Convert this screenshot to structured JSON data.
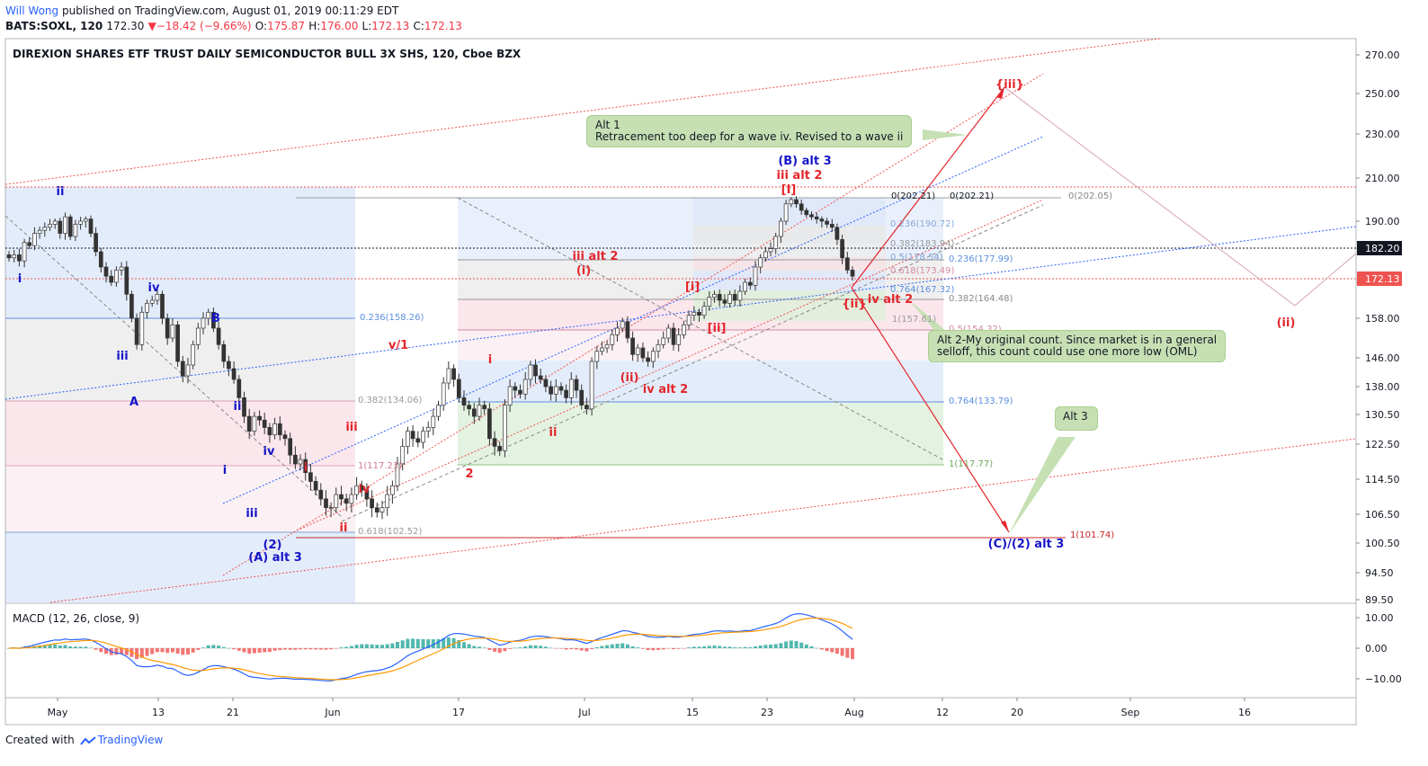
{
  "header": {
    "author": "Will Wong",
    "published": "published on TradingView.com, August 01, 2019 00:11:29 EDT",
    "symbol": "BATS:SOXL, 120",
    "last": "172.30",
    "arrow": "▼",
    "change": "−18.42 (−9.66%)",
    "o_label": "O:",
    "o": "175.87",
    "h_label": "H:",
    "h": "176.00",
    "l_label": "L:",
    "l": "172.13",
    "c_label": "C:",
    "c": "172.13"
  },
  "footer": {
    "created_with": "Created with",
    "brand": "TradingView"
  },
  "colors": {
    "up": "#26a69a",
    "down": "#ef5350",
    "wave_red": "#e3262b",
    "wave_blue": "#1515c8",
    "macd": "#2962ff",
    "signal": "#ff9800"
  },
  "callouts": {
    "alt1_l1": "Alt 1",
    "alt1_l2": "Retracement too deep for a wave iv. Revised to a wave ii",
    "alt2_l1": "Alt 2-My original count. Since market is in a general",
    "alt2_l2": "selloff, this count could use one more low (OML)",
    "alt3": "Alt 3"
  },
  "chart_data": {
    "type": "candlestick",
    "title": "DIREXION SHARES ETF TRUST DAILY SEMICONDUCTOR BULL 3X SHS, 120, Cboe BZX",
    "price_ticks": [
      "270.00",
      "250.00",
      "230.00",
      "210.00",
      "190.00",
      "170.00",
      "158.00",
      "146.00",
      "138.00",
      "130.50",
      "122.50",
      "114.50",
      "106.50",
      "100.50",
      "94.50",
      "89.50"
    ],
    "price_badges": [
      {
        "value": "182.20",
        "color": "#131722"
      },
      {
        "value": "172.13",
        "color": "#ef5350"
      }
    ],
    "x_ticks": [
      "May",
      "13",
      "21",
      "Jun",
      "17",
      "Jul",
      "15",
      "23",
      "Aug",
      "12",
      "20",
      "Sep",
      "16"
    ],
    "candles_note": "approximate 2-hour candles, late Apr - Jul 31 2019",
    "closes": [
      178,
      179,
      177,
      183,
      182,
      186,
      187,
      188,
      189,
      190,
      186,
      192,
      185,
      189,
      190,
      191,
      186,
      180,
      175,
      172,
      170,
      174,
      175,
      166,
      158,
      150,
      160,
      163,
      164,
      166,
      158,
      152,
      156,
      145,
      141,
      144,
      150,
      155,
      158,
      160,
      155,
      150,
      145,
      143,
      140,
      135,
      130,
      126,
      130,
      129,
      127,
      125,
      128,
      125,
      124,
      120,
      118,
      119,
      116,
      114,
      112,
      110,
      108,
      108,
      111,
      110,
      109,
      111,
      113,
      112,
      110,
      108,
      107,
      108,
      111,
      113,
      118,
      122,
      126,
      124,
      123,
      126,
      127,
      130,
      133,
      139,
      143,
      140,
      135,
      133,
      132,
      130,
      133,
      132,
      124,
      122,
      121,
      133,
      138,
      137,
      136,
      140,
      144,
      141,
      140,
      138,
      136,
      138,
      137,
      135,
      140,
      137,
      133,
      132,
      145,
      148,
      149,
      150,
      153,
      155,
      157,
      152,
      147,
      149,
      146,
      145,
      148,
      150,
      152,
      155,
      150,
      153,
      156,
      159,
      160,
      159,
      162,
      165,
      166,
      164,
      163,
      166,
      164,
      167,
      170,
      169,
      175,
      178,
      180,
      181,
      185,
      190,
      198,
      200,
      198,
      195,
      193,
      192,
      191,
      190,
      189,
      188,
      184,
      178,
      174,
      172
    ],
    "fib_levels": [
      {
        "label": "0.236(158.26)"
      },
      {
        "label": "0.382(134.06)"
      },
      {
        "label": "1(117.23)"
      },
      {
        "label": "0.618(102.52)"
      },
      {
        "label": "0(202.21)"
      },
      {
        "label": "0(202.21)"
      },
      {
        "label": "0.236(190.72)"
      },
      {
        "label": "0.382(183.94)"
      },
      {
        "label": "0.5(178.54)"
      },
      {
        "label": "0.618(173.49)"
      },
      {
        "label": "0.764(167.32)"
      },
      {
        "label": "1(157.61)"
      },
      {
        "label": "0(202.05)"
      },
      {
        "label": "0.236(177.99)"
      },
      {
        "label": "0.382(164.48)"
      },
      {
        "label": "0.5(154.32)"
      },
      {
        "label": "0.764(133.79)"
      },
      {
        "label": "1(117.77)"
      },
      {
        "label": "1(101.74)"
      }
    ],
    "wave_labels": [
      {
        "text": "ii",
        "color": "blue"
      },
      {
        "text": "i",
        "color": "blue"
      },
      {
        "text": "iv",
        "color": "blue"
      },
      {
        "text": "B",
        "color": "blue"
      },
      {
        "text": "iii",
        "color": "blue"
      },
      {
        "text": "A",
        "color": "blue"
      },
      {
        "text": "ii",
        "color": "blue"
      },
      {
        "text": "i",
        "color": "blue"
      },
      {
        "text": "iv",
        "color": "blue"
      },
      {
        "text": "iii",
        "color": "blue"
      },
      {
        "text": "(2)",
        "color": "blue"
      },
      {
        "text": "(A) alt 3",
        "color": "blue"
      },
      {
        "text": "i",
        "color": "red"
      },
      {
        "text": "iii",
        "color": "red"
      },
      {
        "text": "iv",
        "color": "red"
      },
      {
        "text": "ii",
        "color": "red"
      },
      {
        "text": "v/1",
        "color": "red"
      },
      {
        "text": "2",
        "color": "red"
      },
      {
        "text": "i",
        "color": "red"
      },
      {
        "text": "ii",
        "color": "red"
      },
      {
        "text": "iii alt 2",
        "color": "red"
      },
      {
        "text": "(i)",
        "color": "red"
      },
      {
        "text": "(ii)",
        "color": "red"
      },
      {
        "text": "iv alt 2",
        "color": "red"
      },
      {
        "text": "[i]",
        "color": "red"
      },
      {
        "text": "[ii]",
        "color": "red"
      },
      {
        "text": "(B) alt 3",
        "color": "blue"
      },
      {
        "text": "iii alt 2",
        "color": "red"
      },
      {
        "text": "[I]",
        "color": "red"
      },
      {
        "text": "{ii}",
        "color": "red"
      },
      {
        "text": "iv alt 2",
        "color": "red"
      },
      {
        "text": "{iii}",
        "color": "red"
      },
      {
        "text": "(ii)",
        "color": "red"
      },
      {
        "text": "(C)/(2) alt 3",
        "color": "blue"
      }
    ],
    "macd": {
      "label": "MACD (12, 26, close, 9)",
      "ticks": [
        "10.00",
        "0.00",
        "−10.00"
      ]
    }
  }
}
